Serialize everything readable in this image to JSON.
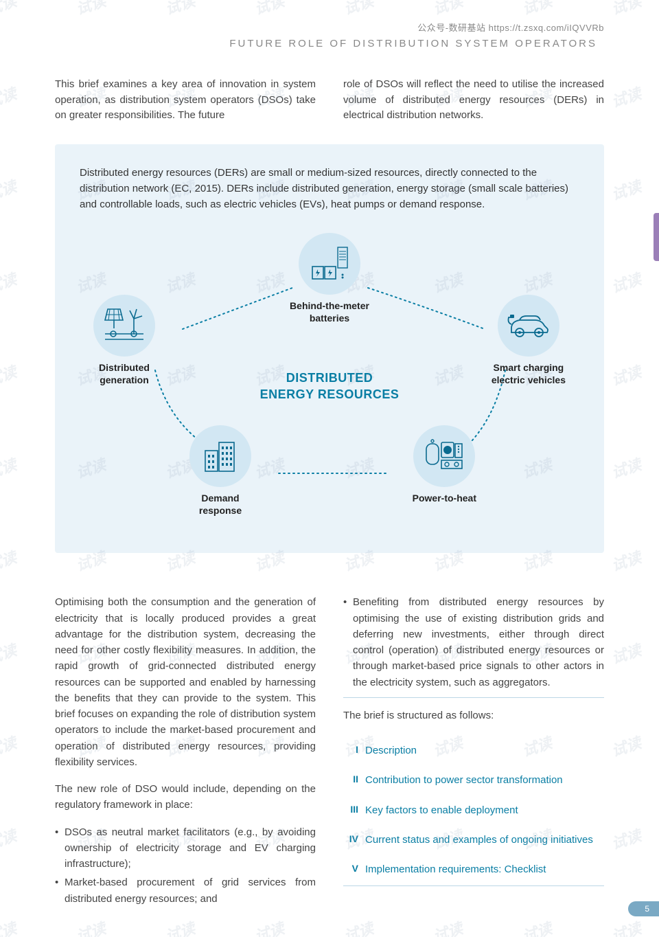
{
  "header": {
    "note": "公众号-数研基站 https://t.zsxq.com/iIQVVRb",
    "title": "FUTURE ROLE OF DISTRIBUTION SYSTEM OPERATORS"
  },
  "watermark": "试读",
  "intro": {
    "left": "This brief examines a key area of innovation in system operation, as distribution system operators (DSOs) take on greater responsibilities. The future",
    "right": "role of DSOs will reflect the need to utilise the increased volume of distributed energy resources (DERs) in electrical distribution networks."
  },
  "infobox": {
    "text": "Distributed energy resources (DERs) are small or medium-sized resources, directly connected to the distribution network (EC, 2015). DERs include distributed generation, energy storage (small scale batteries) and controllable loads, such as electric vehicles (EVs), heat pumps or demand response.",
    "center": "DISTRIBUTED\nENERGY RESOURCES",
    "nodes": {
      "top": "Behind-the-meter\nbatteries",
      "left": "Distributed\ngeneration",
      "right": "Smart charging\nelectric vehicles",
      "bl": "Demand\nresponse",
      "br": "Power-to-heat"
    },
    "colors": {
      "circle_fill": "#d2e7f3",
      "title_color": "#0a7ea4",
      "connector": "#0a7ea4",
      "box_bg": "#eaf3f9"
    }
  },
  "body": {
    "p1": "Optimising both the consumption and the generation of electricity that is locally produced provides a great advantage for the distribution system, decreasing the need for other costly flexibility measures. In addition, the rapid growth of grid-connected distributed energy resources can be supported and enabled by harnessing the benefits that they can provide to the system. This brief focuses on expanding the role of distribution system operators to include the market-based procurement and operation of distributed energy resources, providing flexibility services.",
    "p2": "The new role of DSO would include, depending on the regulatory framework in place:",
    "bullets_left": [
      "DSOs as neutral market facilitators (e.g., by avoiding ownership of electricity storage and EV charging infrastructure);",
      "Market-based procurement of grid services from distributed energy resources; and"
    ],
    "bullet_right": "Benefiting from distributed energy resources by optimising the use of existing distribution grids and deferring new investments, either through direct control (operation) of distributed energy resources or through market-based price signals to other actors in the electricity system, such as aggregators.",
    "toc_intro": "The brief is structured as follows:",
    "toc": [
      {
        "num": "I",
        "label": "Description"
      },
      {
        "num": "II",
        "label": "Contribution to power sector transformation"
      },
      {
        "num": "III",
        "label": "Key factors to enable deployment"
      },
      {
        "num": "IV",
        "label": "Current status and examples of ongoing initiatives"
      },
      {
        "num": "V",
        "label": "Implementation requirements: Checklist"
      }
    ]
  },
  "page_number": "5"
}
